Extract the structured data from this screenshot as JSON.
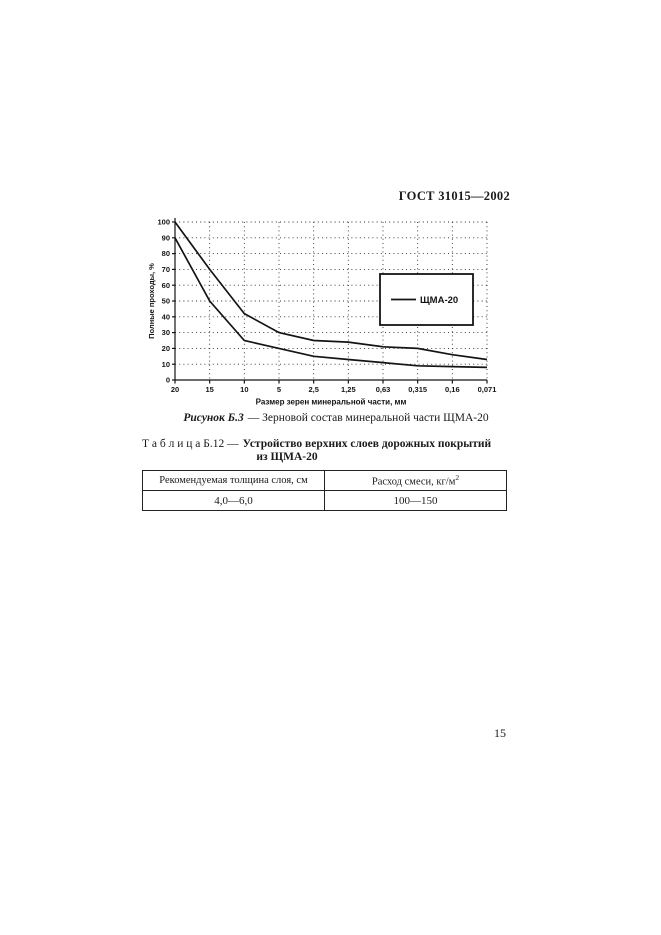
{
  "page": {
    "header": "ГОСТ 31015—2002",
    "number": "15"
  },
  "figure": {
    "caption_label": "Рисунок Б.3",
    "caption_rest": "— Зерновой состав минеральной части ЩМА-20"
  },
  "chart_data": {
    "type": "line",
    "title": "",
    "xlabel": "Размер зерен минеральной части, мм",
    "ylabel": "Полные проходы, %",
    "x_tick_labels": [
      "20",
      "15",
      "10",
      "5",
      "2,5",
      "1,25",
      "0,63",
      "0,315",
      "0,16",
      "0,071"
    ],
    "x_values_mm": [
      20,
      15,
      10,
      5,
      2.5,
      1.25,
      0.63,
      0.315,
      0.16,
      0.071
    ],
    "y_ticks": [
      0,
      10,
      20,
      30,
      40,
      50,
      60,
      70,
      80,
      90,
      100
    ],
    "ylim": [
      0,
      100
    ],
    "grid": "dotted",
    "legend": {
      "label": "ЩМА-20",
      "position": "inside-right"
    },
    "series": [
      {
        "name": "upper-limit",
        "values": [
          100,
          70,
          42,
          30,
          25,
          24,
          21,
          20,
          16,
          13
        ]
      },
      {
        "name": "lower-limit",
        "values": [
          90,
          50,
          25,
          20,
          15,
          13,
          11,
          9,
          8.5,
          8
        ]
      }
    ],
    "line_color": "#141414"
  },
  "table": {
    "caption_prefix": "Т а б л и ц а  Б.12 —",
    "caption_title_line1": "Устройство верхних слоев дорожных покрытий",
    "caption_title_line2": "из ЩМА-20",
    "col1_header": "Рекомендуемая толщина слоя, см",
    "col2_header_base": "Расход смеси, кг/м",
    "col2_header_sup": "2",
    "rows": [
      {
        "thickness": "4,0—6,0",
        "consumption": "100—150"
      }
    ]
  }
}
